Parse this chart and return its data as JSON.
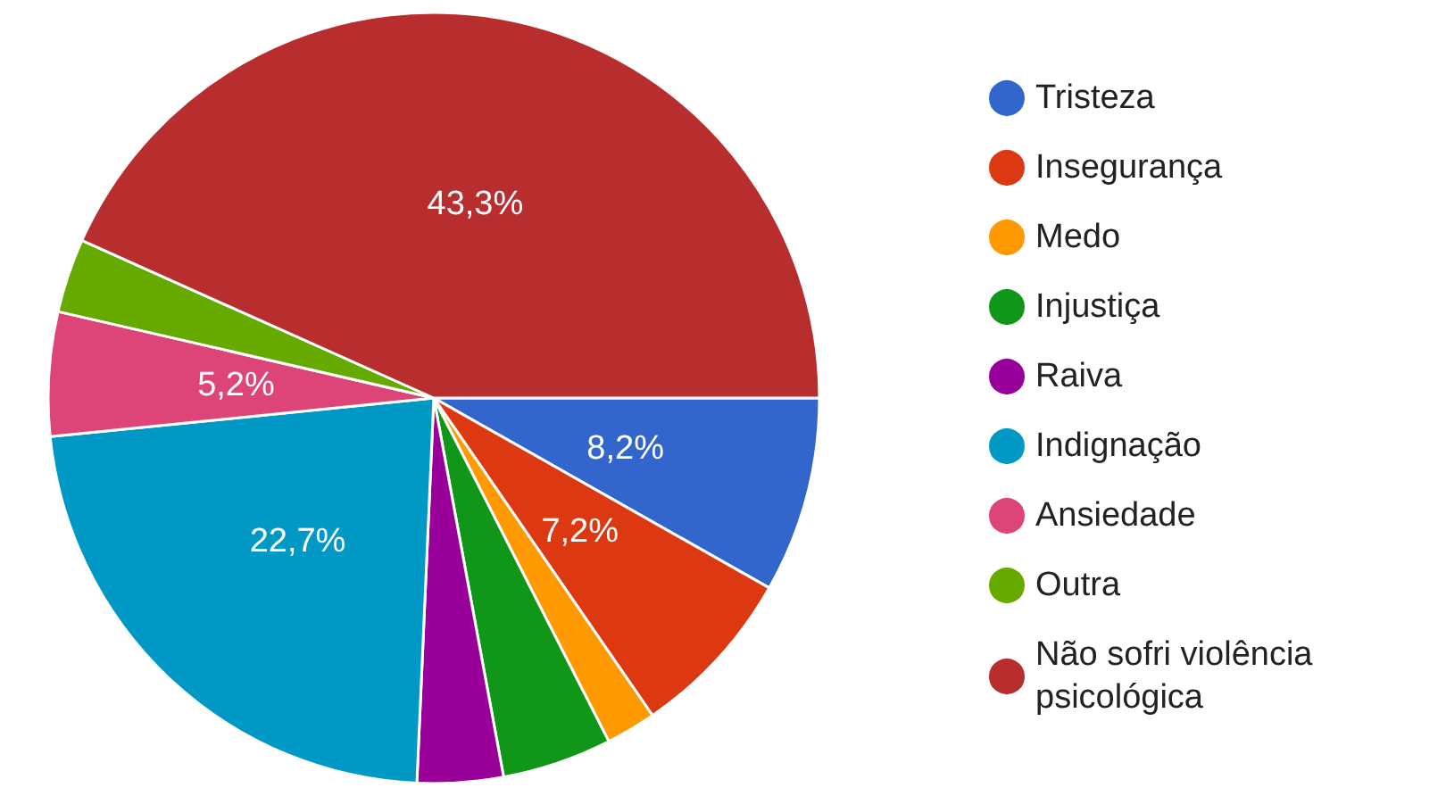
{
  "chart_data": {
    "type": "pie",
    "categories": [
      "Tristeza",
      "Insegurança",
      "Medo",
      "Injustiça",
      "Raiva",
      "Indignação",
      "Ansiedade",
      "Outra",
      "Não sofri violência psicológica"
    ],
    "values": [
      8.2,
      7.2,
      2.1,
      4.6,
      3.6,
      22.7,
      5.2,
      3.1,
      43.3
    ],
    "value_labels": [
      "8,2%",
      "7,2%",
      null,
      null,
      null,
      "22,7%",
      "5,2%",
      null,
      "43,3%"
    ],
    "colors": [
      "#3366cc",
      "#dc3912",
      "#ff9900",
      "#109618",
      "#990099",
      "#0099c6",
      "#dd4477",
      "#66aa00",
      "#b82e2e"
    ],
    "legend": "right"
  }
}
